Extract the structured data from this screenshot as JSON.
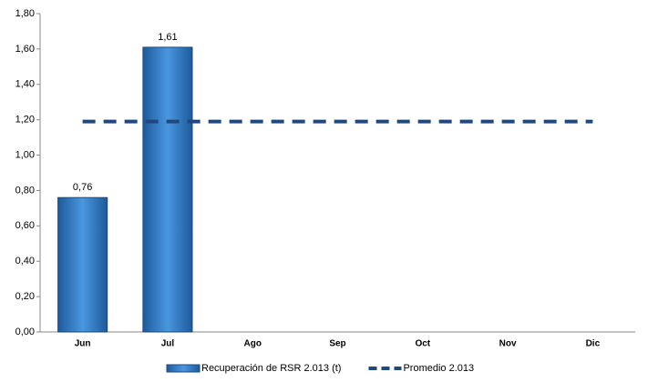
{
  "chart_data": {
    "type": "bar",
    "categories": [
      "Jun",
      "Jul",
      "Ago",
      "Sep",
      "Oct",
      "Nov",
      "Dic"
    ],
    "series": [
      {
        "name": "Recuperación de RSR 2.013 (t)",
        "type": "bar",
        "color": "#2f78c4",
        "values": [
          0.76,
          1.61,
          null,
          null,
          null,
          null,
          null
        ],
        "value_labels": [
          "0,76",
          "1,61",
          null,
          null,
          null,
          null,
          null
        ]
      },
      {
        "name": "Promedio 2.013",
        "type": "line",
        "color": "#1f497d",
        "dashed": true,
        "values": [
          1.19,
          1.19,
          1.19,
          1.19,
          1.19,
          1.19,
          1.19
        ]
      }
    ],
    "ylim": [
      0,
      1.8
    ],
    "yticks": [
      {
        "value": 0,
        "label": "0,00"
      },
      {
        "value": 0.2,
        "label": "0,20"
      },
      {
        "value": 0.4,
        "label": "0,40"
      },
      {
        "value": 0.6,
        "label": "0,60"
      },
      {
        "value": 0.8,
        "label": "0,80"
      },
      {
        "value": 1,
        "label": "1,00"
      },
      {
        "value": 1.2,
        "label": "1,20"
      },
      {
        "value": 1.4,
        "label": "1,40"
      },
      {
        "value": 1.6,
        "label": "1,60"
      },
      {
        "value": 1.8,
        "label": "1,80"
      }
    ],
    "grid": false,
    "legend": "bottom"
  }
}
